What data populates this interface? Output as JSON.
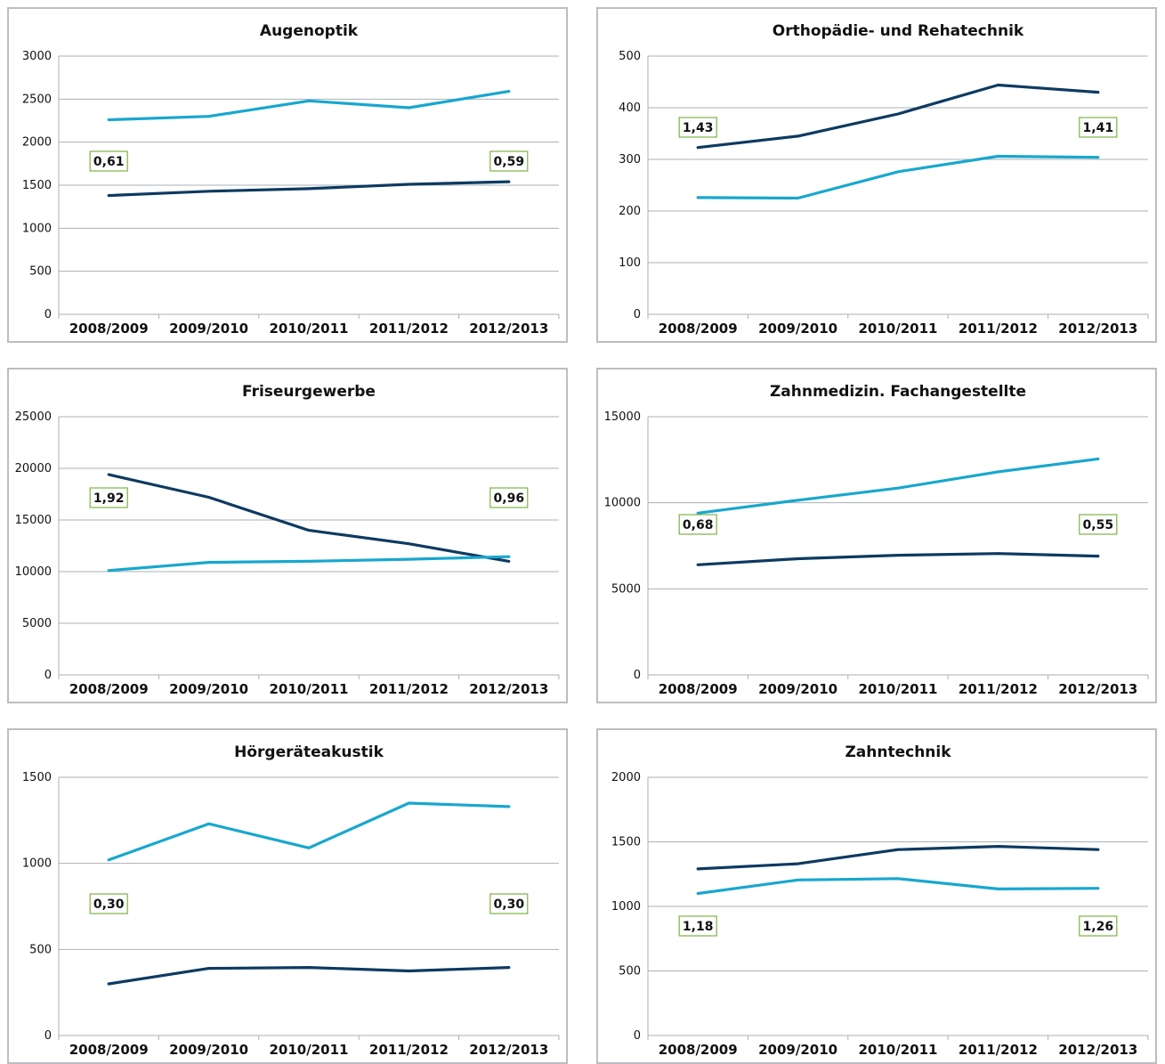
{
  "colors": {
    "dark_series": "#0d3a61",
    "light_series": "#18a7cf",
    "grid": "#aab0b5",
    "ratio_border": "#7cb342",
    "panel_border": "#b9bec3"
  },
  "chart_data": [
    {
      "type": "line",
      "title": "Augenoptik",
      "categories": [
        "2008/2009",
        "2009/2010",
        "2010/2011",
        "2011/2012",
        "2012/2013"
      ],
      "ylim": [
        0,
        3000
      ],
      "yticks": [
        0,
        500,
        1000,
        1500,
        2000,
        2500,
        3000
      ],
      "grid": true,
      "series": [
        {
          "color": "#18a7cf",
          "values": [
            2260,
            2300,
            2480,
            2400,
            2590
          ]
        },
        {
          "color": "#0d3a61",
          "values": [
            1380,
            1430,
            1460,
            1510,
            1540
          ]
        }
      ],
      "ratio_labels": {
        "first": "0,61",
        "last": "0,59"
      }
    },
    {
      "type": "line",
      "title": "Orthopädie- und Rehatechnik",
      "categories": [
        "2008/2009",
        "2009/2010",
        "2010/2011",
        "2011/2012",
        "2012/2013"
      ],
      "ylim": [
        0,
        500
      ],
      "yticks": [
        0,
        100,
        200,
        300,
        400,
        500
      ],
      "grid": true,
      "series": [
        {
          "color": "#0d3a61",
          "values": [
            323,
            345,
            388,
            444,
            430
          ]
        },
        {
          "color": "#18a7cf",
          "values": [
            226,
            225,
            276,
            306,
            304
          ]
        }
      ],
      "ratio_labels": {
        "first": "1,43",
        "last": "1,41"
      }
    },
    {
      "type": "line",
      "title": "Friseurgewerbe",
      "categories": [
        "2008/2009",
        "2009/2010",
        "2010/2011",
        "2011/2012",
        "2012/2013"
      ],
      "ylim": [
        0,
        25000
      ],
      "yticks": [
        0,
        5000,
        10000,
        15000,
        20000,
        25000
      ],
      "grid": true,
      "series": [
        {
          "color": "#0d3a61",
          "values": [
            19400,
            17200,
            14000,
            12700,
            11000
          ]
        },
        {
          "color": "#18a7cf",
          "values": [
            10100,
            10900,
            11000,
            11200,
            11450
          ]
        }
      ],
      "ratio_labels": {
        "first": "1,92",
        "last": "0,96"
      }
    },
    {
      "type": "line",
      "title": "Zahnmedizin. Fachangestellte",
      "categories": [
        "2008/2009",
        "2009/2010",
        "2010/2011",
        "2011/2012",
        "2012/2013"
      ],
      "ylim": [
        0,
        15000
      ],
      "yticks": [
        0,
        5000,
        10000,
        15000
      ],
      "grid": true,
      "series": [
        {
          "color": "#18a7cf",
          "values": [
            9400,
            10150,
            10850,
            11800,
            12550
          ]
        },
        {
          "color": "#0d3a61",
          "values": [
            6400,
            6750,
            6950,
            7050,
            6900
          ]
        }
      ],
      "ratio_labels": {
        "first": "0,68",
        "last": "0,55"
      }
    },
    {
      "type": "line",
      "title": "Hörgeräteakustik",
      "categories": [
        "2008/2009",
        "2009/2010",
        "2010/2011",
        "2011/2012",
        "2012/2013"
      ],
      "ylim": [
        0,
        1500
      ],
      "yticks": [
        0,
        500,
        1000,
        1500
      ],
      "grid": true,
      "series": [
        {
          "color": "#18a7cf",
          "values": [
            1020,
            1230,
            1090,
            1350,
            1330
          ]
        },
        {
          "color": "#0d3a61",
          "values": [
            300,
            390,
            395,
            375,
            395
          ]
        }
      ],
      "ratio_labels": {
        "first": "0,30",
        "last": "0,30"
      }
    },
    {
      "type": "line",
      "title": "Zahntechnik",
      "categories": [
        "2008/2009",
        "2009/2010",
        "2010/2011",
        "2011/2012",
        "2012/2013"
      ],
      "ylim": [
        0,
        2000
      ],
      "yticks": [
        0,
        500,
        1000,
        1500,
        2000
      ],
      "grid": true,
      "series": [
        {
          "color": "#0d3a61",
          "values": [
            1290,
            1330,
            1440,
            1465,
            1440
          ]
        },
        {
          "color": "#18a7cf",
          "values": [
            1100,
            1205,
            1215,
            1135,
            1140
          ]
        }
      ],
      "ratio_labels": {
        "first": "1,18",
        "last": "1,26"
      }
    }
  ]
}
